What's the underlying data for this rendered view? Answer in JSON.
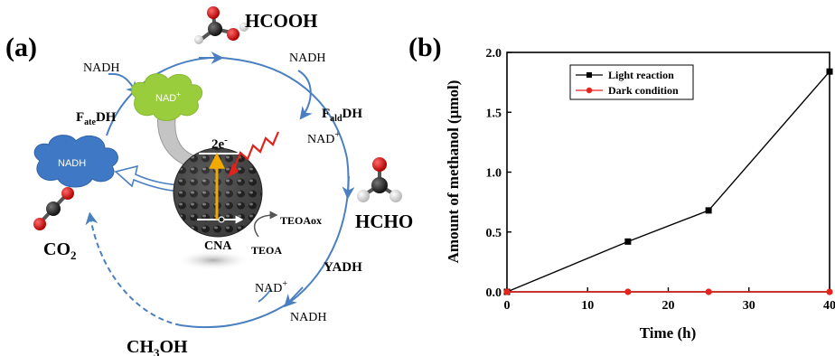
{
  "panel_a": {
    "label": "(a)",
    "molecules": {
      "hcooh": "HCOOH",
      "hcho": "HCHO",
      "co2_main": "CO",
      "co2_sub": "2",
      "ch3oh_a": "CH",
      "ch3oh_sub": "3",
      "ch3oh_b": "OH"
    },
    "enzymes": {
      "fate_main": "F",
      "fate_sub": "ate",
      "fate_tail": "DH",
      "fald_main": "F",
      "fald_sub": "ald",
      "fald_tail": "DH",
      "yadh": "YADH"
    },
    "cofactors": {
      "nadh_top_left": "NADH",
      "nadh_top_right": "NADH",
      "nad_right": "NAD",
      "nad_right_sup": "+",
      "nad_bottom": "NAD",
      "nad_bottom_sup": "+",
      "nadh_bottom": "NADH",
      "cloud_nad": "NAD",
      "cloud_nad_sup": "+",
      "cloud_nadh": "NADH"
    },
    "photo": {
      "electrons": "2e",
      "electrons_sup": "-",
      "catalyst": "CNA",
      "teoa": "TEOA",
      "teoa_ox": "TEOAox"
    },
    "colors": {
      "cycle_arrow": "#4a7fc1",
      "nad_cloud": "#9acd3c",
      "nadh_cloud": "#3f78c4",
      "light_wave": "#e0231c",
      "electron_arrow": "#f2a900"
    }
  },
  "panel_b": {
    "label": "(b)",
    "chart_data": {
      "type": "line",
      "xlabel": "Time (h)",
      "ylabel": "Amount of methanol (μmol)",
      "xlim": [
        0,
        40
      ],
      "ylim": [
        0,
        2.0
      ],
      "xticks": [
        "0",
        "10",
        "20",
        "30",
        "40"
      ],
      "yticks": [
        "0.0",
        "0.5",
        "1.0",
        "1.5",
        "2.0"
      ],
      "grid": false,
      "legend_position": "top-right",
      "series": [
        {
          "name": "Light reaction",
          "color": "#000000",
          "marker": "square",
          "x": [
            0,
            15,
            25,
            40
          ],
          "y": [
            0.0,
            0.42,
            0.68,
            1.84
          ]
        },
        {
          "name": "Dark condition",
          "color": "#e8231e",
          "marker": "circle",
          "x": [
            0,
            15,
            25,
            40
          ],
          "y": [
            0.0,
            0.0,
            0.0,
            0.0
          ]
        }
      ]
    }
  }
}
